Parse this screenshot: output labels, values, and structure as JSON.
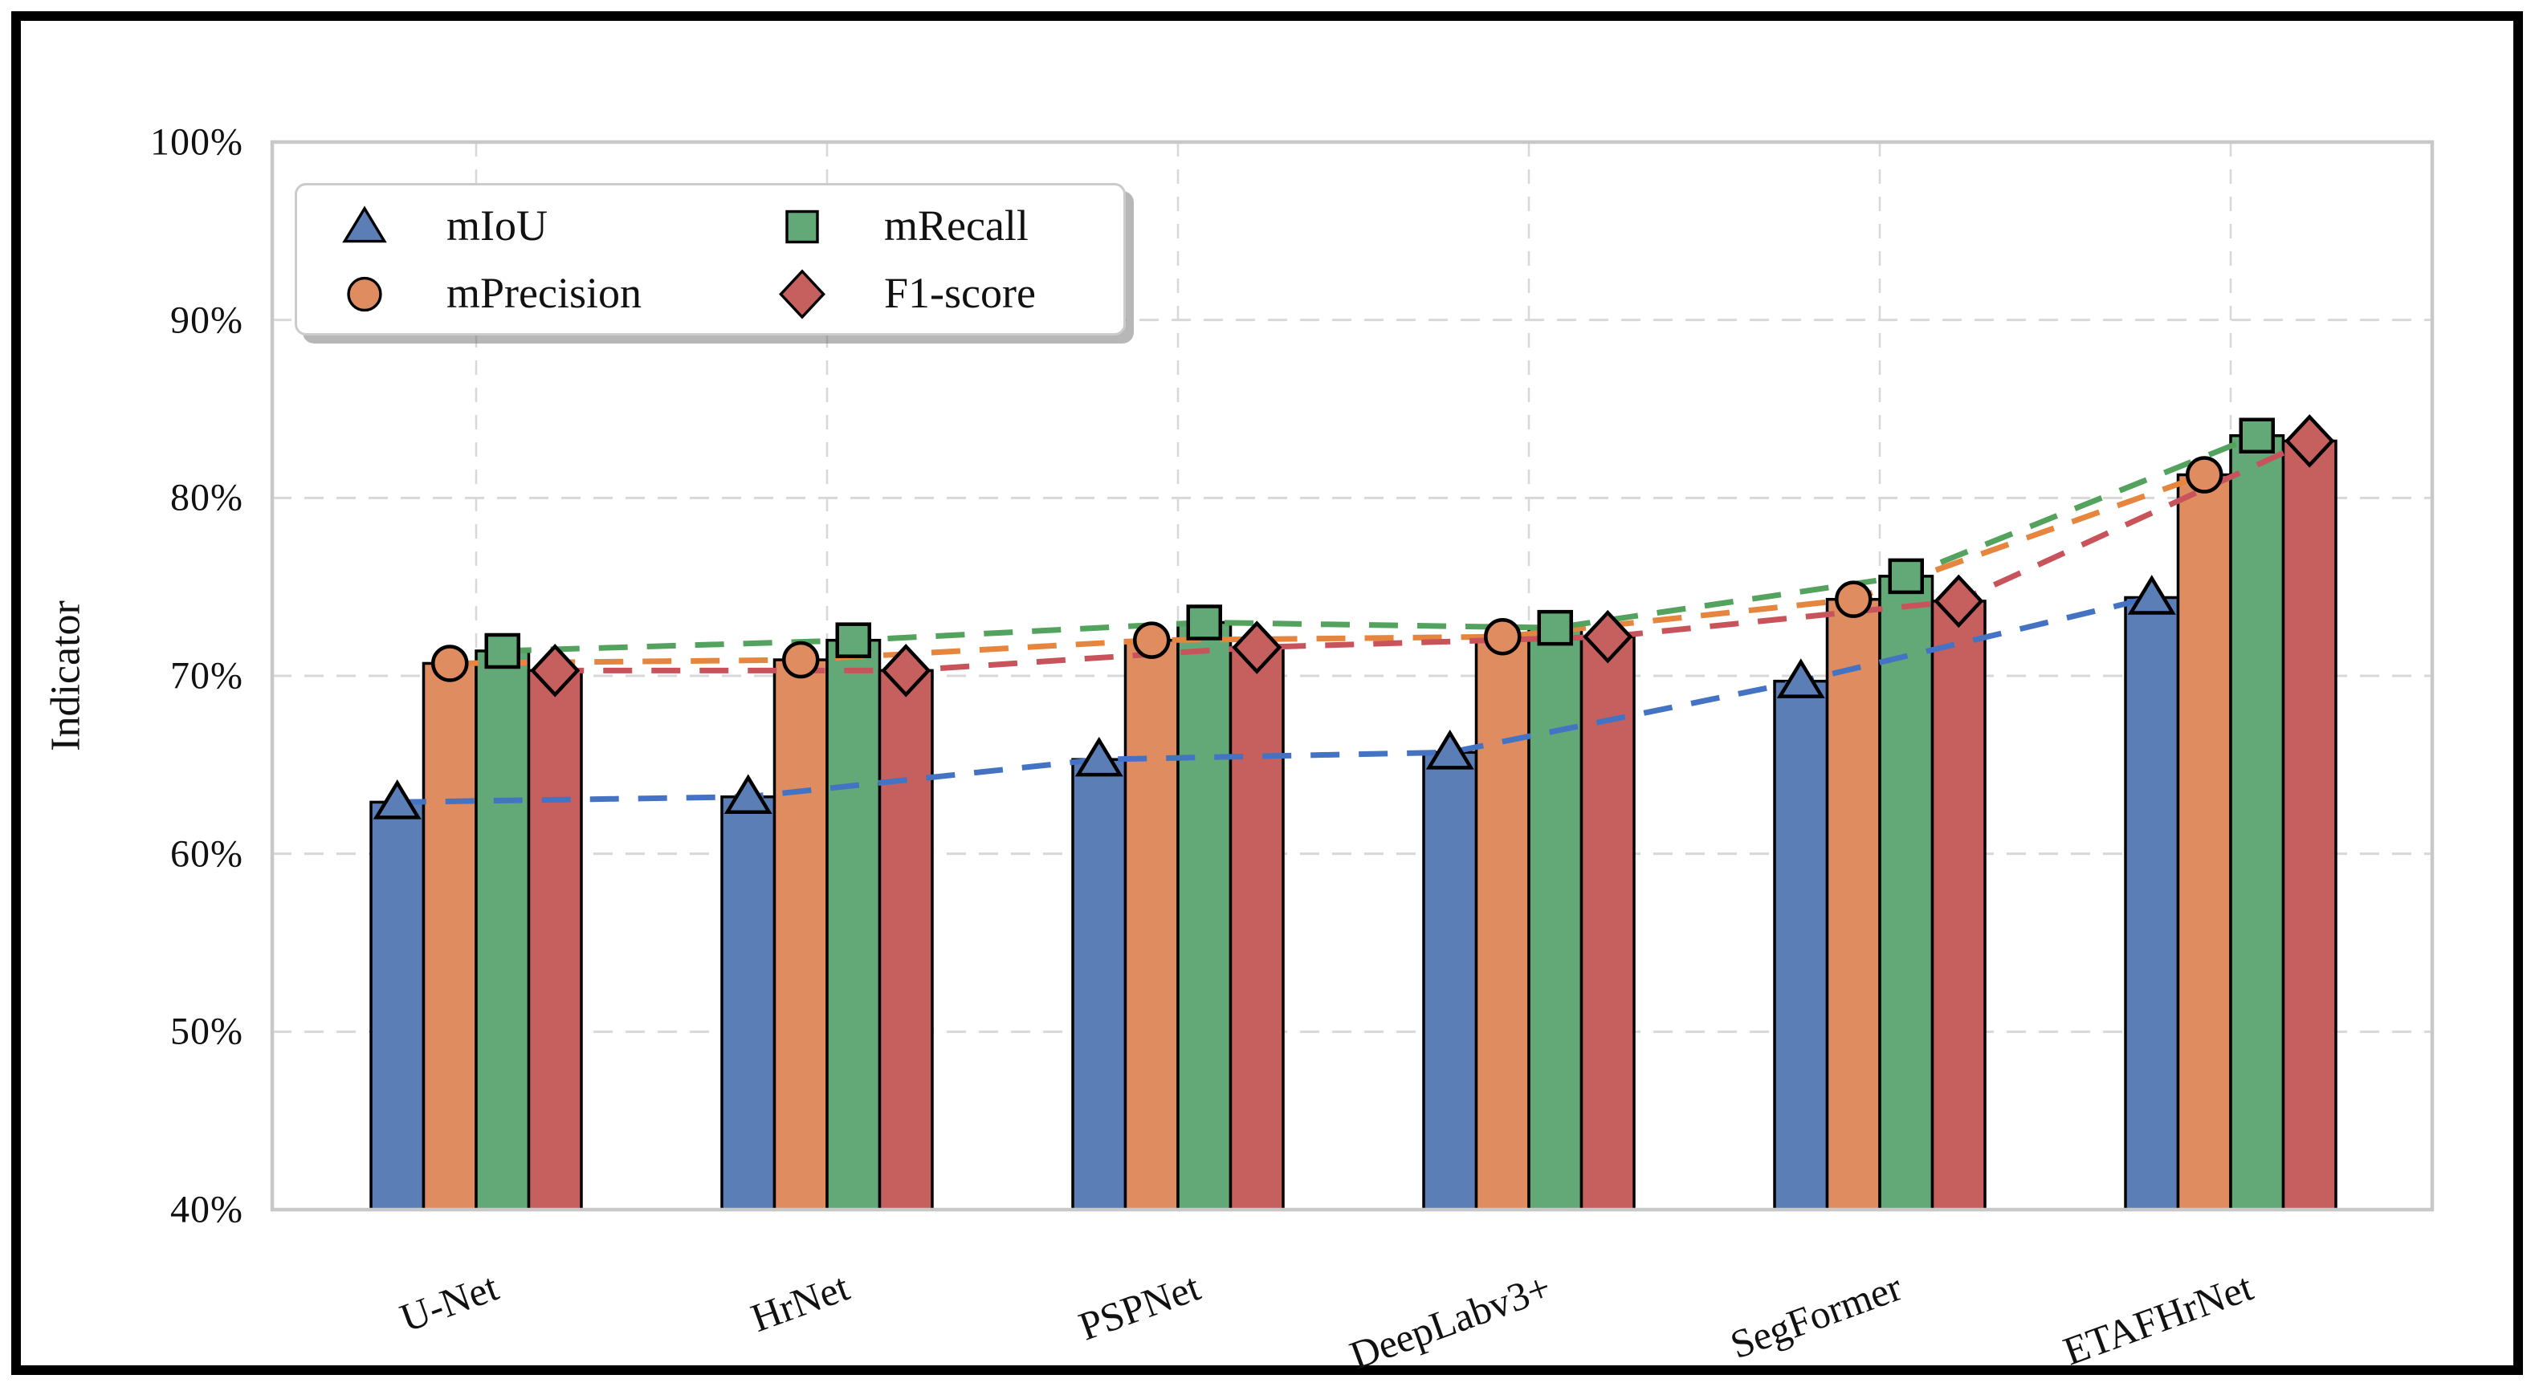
{
  "chart_data": {
    "type": "bar+line",
    "title": "",
    "xlabel": "",
    "ylabel": "Indicator",
    "categories": [
      "U-Net",
      "HrNet",
      "PSPNet",
      "DeepLabv3+",
      "SegFormer",
      "ETAFHrNet"
    ],
    "series": [
      {
        "name": "mIoU",
        "marker": "triangle",
        "bar_color": "#5B7EB7",
        "line_color": "#4573C4",
        "values": [
          62.9,
          63.2,
          65.3,
          65.7,
          69.7,
          74.4
        ]
      },
      {
        "name": "mPrecision",
        "marker": "circle",
        "bar_color": "#DF8D60",
        "line_color": "#E6853E",
        "values": [
          70.7,
          70.9,
          72.0,
          72.2,
          74.3,
          81.3
        ]
      },
      {
        "name": "mRecall",
        "marker": "square",
        "bar_color": "#63A877",
        "line_color": "#53A25D",
        "values": [
          71.4,
          72.0,
          73.0,
          72.7,
          75.6,
          83.5
        ]
      },
      {
        "name": "F1-score",
        "marker": "diamond",
        "bar_color": "#C5605F",
        "line_color": "#C8535A",
        "values": [
          70.3,
          70.3,
          71.6,
          72.2,
          74.2,
          83.2
        ]
      }
    ],
    "ylim": [
      40,
      100
    ],
    "yticks": [
      40,
      50,
      60,
      70,
      80,
      90,
      100
    ],
    "ytick_format": "{v}%",
    "grid": "dashed-horizontal-and-vertical",
    "legend_position": "upper-left",
    "legend_columns": 2,
    "legend_shadow": true,
    "colors": {
      "background": "#ffffff",
      "figure_border": "#000000",
      "grid": "#d8d8d8",
      "spine": "#c8c8c8",
      "bar_edge": "#000000",
      "marker_edge": "#000000",
      "text": "#111111"
    }
  }
}
